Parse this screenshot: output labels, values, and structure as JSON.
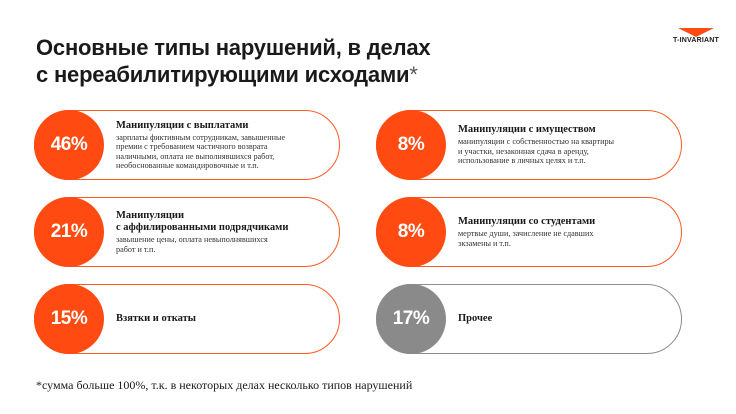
{
  "title": {
    "line1": "Основные типы нарушений, в делах",
    "line2": "с нереабилитирующими исходами",
    "asterisk": "*"
  },
  "logo": {
    "text": "T-INVARIANT",
    "color": "#ff4a12"
  },
  "colors": {
    "accent": "#ff4a12",
    "neutral": "#8a8a8a"
  },
  "cards": [
    {
      "percent": "46%",
      "heading": "Манипуляции с выплатами",
      "desc": [
        "зарплаты фиктивным сотрудникам, завышенные",
        "премии с требованием частичного возврата",
        "наличными, оплата не выполнявшихся работ,",
        "необоснованные командировочные и т.п."
      ]
    },
    {
      "percent": "8%",
      "heading": "Манипуляции с имуществом",
      "desc": [
        "манипуляции с собственностью на квартиры",
        "и участки, незаконная сдача в аренду,",
        "использование в личных целях и т.п."
      ]
    },
    {
      "percent": "21%",
      "heading": [
        "Манипуляции",
        "с аффилированными подрядчиками"
      ],
      "desc": [
        "завышение цены, оплата невыполнявшихся",
        "работ и т.п."
      ]
    },
    {
      "percent": "8%",
      "heading": "Манипуляции со студентами",
      "desc": [
        "мертвые души, зачисление не сдавших",
        "экзамены и т.п."
      ]
    },
    {
      "percent": "15%",
      "heading": "Взятки и откаты"
    },
    {
      "percent": "17%",
      "heading": "Прочее"
    }
  ],
  "footnote": "*сумма больше 100%, т.к. в некоторых делах несколько типов нарушений"
}
